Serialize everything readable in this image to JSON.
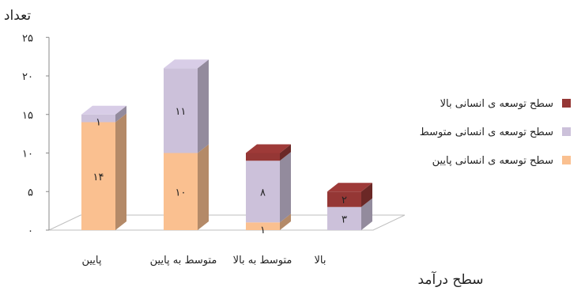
{
  "chart_data": {
    "type": "bar",
    "stacked": true,
    "three_d": true,
    "ylabel": "تعداد",
    "xlabel": "سطح درآمد",
    "ylim": [
      0,
      25
    ],
    "yticks": [
      "۰",
      "۵",
      "۱۰",
      "۱۵",
      "۲۰",
      "۲۵"
    ],
    "grid": false,
    "legend_position": "right",
    "categories": [
      "پایین",
      "متوسط به پایین",
      "متوسط به بالا",
      "بالا"
    ],
    "series": [
      {
        "name": "سطح توسعه ی انسانی پایین",
        "color": "#fac090",
        "values": [
          14,
          10,
          1,
          0
        ],
        "labels": [
          "۱۴",
          "۱۰",
          "۱",
          ""
        ]
      },
      {
        "name": "سطح توسعه ی انسانی متوسط",
        "color": "#ccc1da",
        "values": [
          1,
          11,
          8,
          3
        ],
        "labels": [
          "۱",
          "۱۱",
          "۸",
          "۳"
        ]
      },
      {
        "name": "سطح توسعه ی انسانی بالا",
        "color": "#953735",
        "values": [
          0,
          0,
          1,
          2
        ],
        "labels": [
          "",
          "",
          "",
          "۲"
        ]
      }
    ]
  }
}
